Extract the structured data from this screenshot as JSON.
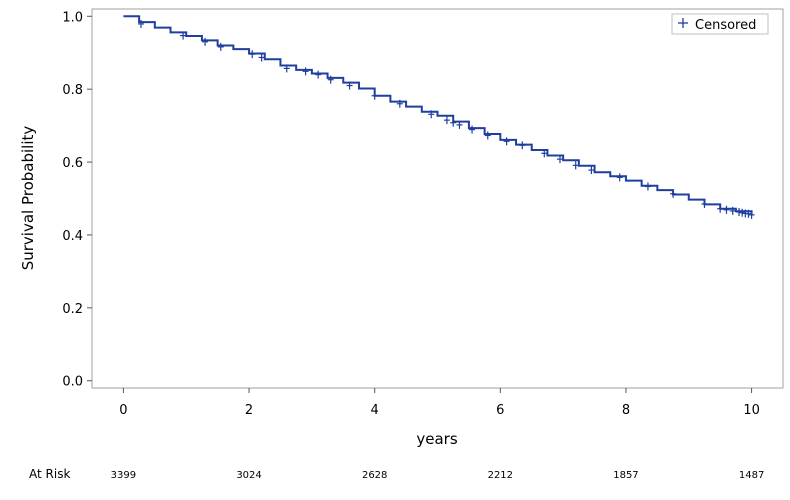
{
  "chart_data": {
    "type": "line",
    "xlabel": "years",
    "ylabel": "Survival Probability",
    "xlim": [
      -0.5,
      10.5
    ],
    "ylim": [
      -0.02,
      1.02
    ],
    "x_ticks": [
      "0",
      "2",
      "4",
      "6",
      "8",
      "10"
    ],
    "y_ticks": [
      "0.0",
      "0.2",
      "0.4",
      "0.6",
      "0.8",
      "1.0"
    ],
    "grid": false,
    "legend": {
      "position": "top-right",
      "entries": [
        {
          "label": "Censored",
          "marker": "+"
        }
      ]
    },
    "colors": {
      "line": "#1f3f9f",
      "frame": "#a0a0a0"
    },
    "series": [
      {
        "x": [
          0,
          0.25,
          0.5,
          0.75,
          1.0,
          1.25,
          1.5,
          1.75,
          2.0,
          2.25,
          2.5,
          2.75,
          3.0,
          3.25,
          3.5,
          3.75,
          4.0,
          4.25,
          4.5,
          4.75,
          5.0,
          5.25,
          5.5,
          5.75,
          6.0,
          6.25,
          6.5,
          6.75,
          7.0,
          7.25,
          7.5,
          7.75,
          8.0,
          8.25,
          8.5,
          8.75,
          9.0,
          9.25,
          9.5,
          9.75,
          10.0
        ],
        "y": [
          1.0,
          0.984,
          0.969,
          0.956,
          0.946,
          0.934,
          0.92,
          0.91,
          0.898,
          0.882,
          0.865,
          0.853,
          0.843,
          0.831,
          0.818,
          0.802,
          0.782,
          0.766,
          0.752,
          0.738,
          0.727,
          0.711,
          0.693,
          0.677,
          0.661,
          0.648,
          0.633,
          0.618,
          0.605,
          0.59,
          0.572,
          0.561,
          0.549,
          0.535,
          0.523,
          0.511,
          0.497,
          0.484,
          0.472,
          0.465,
          0.455
        ]
      }
    ],
    "censored": {
      "x": [
        0.28,
        0.95,
        1.3,
        1.55,
        2.05,
        2.2,
        2.6,
        2.9,
        3.1,
        3.3,
        3.6,
        4.0,
        4.4,
        4.9,
        5.15,
        5.25,
        5.35,
        5.55,
        5.8,
        6.1,
        6.35,
        6.7,
        6.95,
        7.2,
        7.45,
        7.9,
        8.35,
        8.75,
        9.25,
        9.5,
        9.6,
        9.7,
        9.8,
        9.85,
        9.9,
        9.95,
        10.0
      ],
      "y": [
        0.979,
        0.947,
        0.93,
        0.916,
        0.896,
        0.887,
        0.857,
        0.849,
        0.84,
        0.826,
        0.81,
        0.782,
        0.76,
        0.731,
        0.715,
        0.708,
        0.702,
        0.689,
        0.673,
        0.657,
        0.646,
        0.624,
        0.608,
        0.591,
        0.578,
        0.558,
        0.533,
        0.513,
        0.485,
        0.472,
        0.469,
        0.466,
        0.463,
        0.461,
        0.459,
        0.458,
        0.455
      ]
    },
    "at_risk": {
      "title": "At Risk",
      "x": [
        0,
        2,
        4,
        6,
        8,
        10
      ],
      "values": [
        "3399",
        "3024",
        "2628",
        "2212",
        "1857",
        "1487"
      ]
    }
  }
}
